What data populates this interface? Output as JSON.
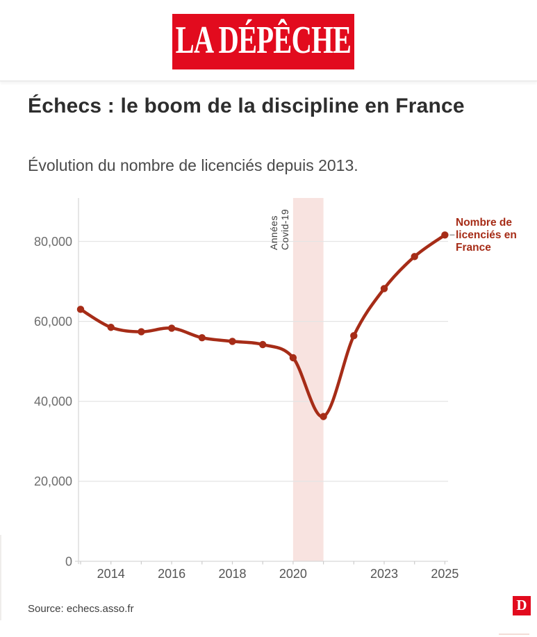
{
  "header": {
    "logo_text": "LA DÉPÊCHE",
    "brand_red": "#e20b1e"
  },
  "article": {
    "title": "Échecs : le boom de la discipline en France",
    "subtitle": "Évolution du nombre de licenciés depuis 2013."
  },
  "chart_data": {
    "type": "line",
    "title": "Échecs : le boom de la discipline en France",
    "subtitle": "Évolution du nombre de licenciés depuis 2013.",
    "x": [
      2013,
      2014,
      2015,
      2016,
      2017,
      2018,
      2019,
      2020,
      2021,
      2022,
      2023,
      2024,
      2025
    ],
    "series": [
      {
        "name": "Nombre de licenciés en France",
        "values": [
          63000,
          58500,
          57400,
          58300,
          55900,
          55000,
          54200,
          50900,
          36200,
          56400,
          68200,
          76200,
          81600
        ]
      }
    ],
    "xlabel": "",
    "ylabel": "",
    "ylim": [
      0,
      90800
    ],
    "y_ticks": [
      0,
      20000,
      40000,
      60000,
      80000
    ],
    "y_tick_labels": [
      "0",
      "20,000",
      "40,000",
      "60,000",
      "80,000"
    ],
    "x_ticks_labeled": [
      2014,
      2016,
      2018,
      2020,
      2023,
      2025
    ],
    "grid": true,
    "legend_position": "right-of-last-point",
    "line_color": "#a62c17",
    "point_color": "#a62c17",
    "grid_color": "#e4e4e4",
    "axis_color": "#d8d8d8",
    "covid_band": {
      "from_year": 2020,
      "to_year": 2021,
      "color": "#f8e3e0",
      "label_lines": [
        "Années",
        "Covid-19"
      ]
    },
    "legend_label_lines": [
      "Nombre de",
      "licenciés en",
      "France"
    ]
  },
  "footer": {
    "source": "Source: echecs.asso.fr",
    "logo_letter": "D"
  }
}
